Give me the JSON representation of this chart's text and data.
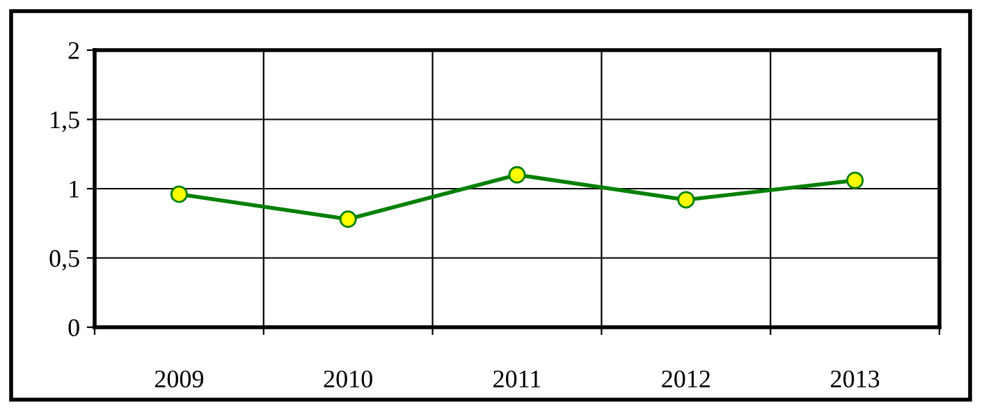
{
  "chart_data": {
    "type": "line",
    "categories": [
      "2009",
      "2010",
      "2011",
      "2012",
      "2013"
    ],
    "series": [
      {
        "color": "#008000",
        "values": [
          0.96,
          0.78,
          1.1,
          0.92,
          1.06
        ]
      }
    ],
    "ylim": [
      0,
      2
    ],
    "yticks": [
      0,
      {
        "value": 0.5,
        "label": "0,5"
      },
      1,
      {
        "value": 1.5,
        "label": "1,5"
      },
      2
    ],
    "grid": true,
    "marker": "circle",
    "line_style": "solid"
  }
}
